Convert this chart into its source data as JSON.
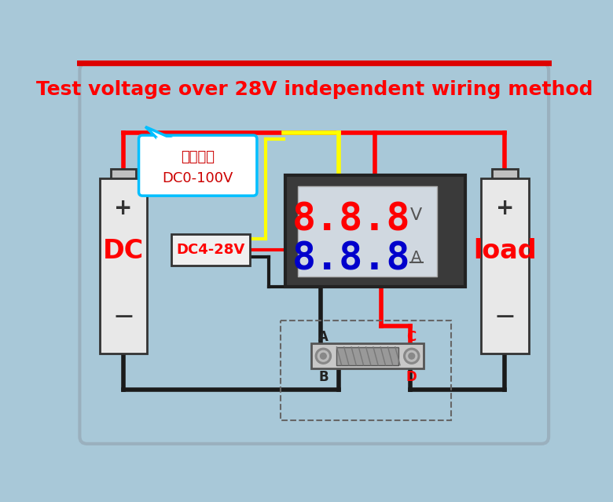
{
  "title": "Test voltage over 28V independent wiring method",
  "title_color": "#FF0000",
  "title_fontsize": 18,
  "bg_color": "#a8c8d8",
  "display_888_red": "#FF0000",
  "display_888_blue": "#0000CC",
  "display_bg": "#d0d8e0",
  "wire_red": "#FF0000",
  "wire_black": "#1a1a1a",
  "wire_yellow": "#FFFF00",
  "dc_label": "DC",
  "load_label": "load",
  "dc4_28v_label": "DC4-28V",
  "callout_text_line1": "测量范围",
  "callout_text_line2": "DC0-100V",
  "callout_color": "#00BFFF",
  "shunt_label_a": "A",
  "shunt_label_b": "B",
  "shunt_label_c": "C",
  "shunt_label_d": "D"
}
